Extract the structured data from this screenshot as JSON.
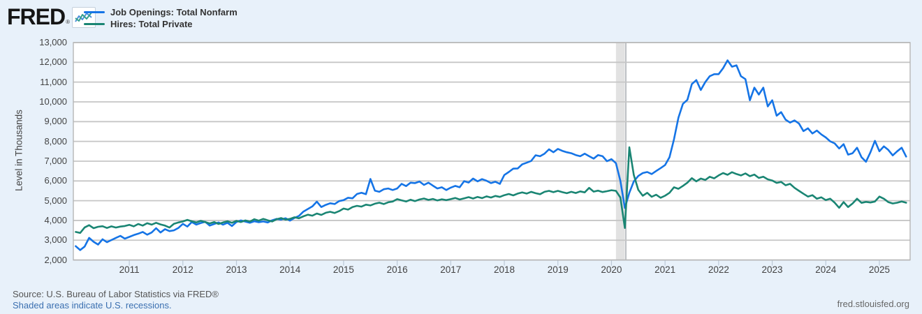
{
  "header": {
    "logo_text": "FRED",
    "logo_reg": "®"
  },
  "colors": {
    "background": "#e8f1fa",
    "plot_bg": "#ffffff",
    "grid": "#c6c6c6",
    "plot_border": "#b6b6b6",
    "recession_band": "#e2e2e2",
    "recession_band_border": "#9aa0a6",
    "x_tick": "#bcc9d6",
    "series_blue": "#1574e6",
    "series_green": "#1a8573"
  },
  "footer": {
    "source": "Source: U.S. Bureau of Labor Statistics via FRED®",
    "recession_note": "Shaded areas indicate U.S. recessions.",
    "site": "fred.stlouisfed.org"
  },
  "chart_data": {
    "type": "line",
    "title": "",
    "ylabel": "Level in Thousands",
    "xlabel": "",
    "ylim": [
      2000,
      13000
    ],
    "grid": "horizontal",
    "legend_position": "top-left",
    "y_tick_labels": [
      "2,000",
      "3,000",
      "4,000",
      "5,000",
      "6,000",
      "7,000",
      "8,000",
      "9,000",
      "10,000",
      "11,000",
      "12,000",
      "13,000"
    ],
    "x_tick_labels": [
      "2011",
      "2012",
      "2013",
      "2014",
      "2015",
      "2016",
      "2017",
      "2018",
      "2019",
      "2020",
      "2021",
      "2022",
      "2023",
      "2024",
      "2025"
    ],
    "x_start": {
      "year": 2010,
      "month": 1
    },
    "frequency": "monthly",
    "recession_bands": [
      {
        "from": "2020-02",
        "to": "2020-04"
      }
    ],
    "series": [
      {
        "id": "job-openings",
        "name": "Job Openings: Total Nonfarm",
        "color": "#1574e6",
        "values": [
          2700,
          2500,
          2680,
          3120,
          2920,
          2780,
          3050,
          2900,
          3010,
          3120,
          3220,
          3080,
          3170,
          3260,
          3330,
          3420,
          3280,
          3390,
          3610,
          3390,
          3560,
          3460,
          3500,
          3620,
          3830,
          3690,
          3920,
          3790,
          3870,
          3930,
          3740,
          3820,
          3900,
          3790,
          3880,
          3720,
          3920,
          4000,
          3940,
          3880,
          3960,
          3910,
          3950,
          3900,
          4010,
          4080,
          4040,
          4110,
          3990,
          4130,
          4230,
          4450,
          4580,
          4710,
          4950,
          4680,
          4790,
          4870,
          4830,
          4980,
          5030,
          5150,
          5120,
          5340,
          5400,
          5330,
          6100,
          5510,
          5450,
          5580,
          5620,
          5540,
          5620,
          5850,
          5740,
          5910,
          5890,
          5970,
          5800,
          5910,
          5760,
          5620,
          5680,
          5540,
          5660,
          5750,
          5680,
          5990,
          5920,
          6120,
          5980,
          6090,
          6010,
          5890,
          5960,
          5850,
          6300,
          6450,
          6620,
          6630,
          6840,
          6920,
          7010,
          7300,
          7250,
          7380,
          7600,
          7450,
          7620,
          7520,
          7450,
          7400,
          7310,
          7250,
          7380,
          7250,
          7130,
          7310,
          7250,
          7000,
          7100,
          6900,
          6000,
          4630,
          5400,
          5980,
          6250,
          6400,
          6450,
          6350,
          6500,
          6650,
          6800,
          7200,
          8100,
          9200,
          9900,
          10100,
          10900,
          11100,
          10600,
          11000,
          11300,
          11400,
          11400,
          11700,
          12100,
          11780,
          11850,
          11300,
          11150,
          10080,
          10720,
          10370,
          10720,
          9770,
          10080,
          9300,
          9480,
          9100,
          8950,
          9060,
          8900,
          8520,
          8660,
          8400,
          8550,
          8350,
          8200,
          8000,
          7900,
          7640,
          7860,
          7330,
          7400,
          7680,
          7200,
          6970,
          7450,
          8030,
          7500,
          7750,
          7570,
          7290,
          7500,
          7680,
          7230
        ]
      },
      {
        "id": "hires",
        "name": "Hires: Total Private",
        "color": "#1a8573",
        "values": [
          3420,
          3370,
          3650,
          3760,
          3610,
          3680,
          3710,
          3620,
          3700,
          3640,
          3690,
          3720,
          3780,
          3700,
          3820,
          3740,
          3860,
          3790,
          3880,
          3800,
          3740,
          3640,
          3830,
          3900,
          3950,
          4030,
          3960,
          3900,
          3980,
          3920,
          3850,
          3920,
          3820,
          3900,
          3960,
          3880,
          3980,
          3920,
          4000,
          3940,
          4060,
          3990,
          4080,
          4010,
          3950,
          4060,
          4120,
          4040,
          4080,
          4160,
          4110,
          4210,
          4290,
          4240,
          4350,
          4280,
          4390,
          4440,
          4380,
          4470,
          4600,
          4550,
          4680,
          4740,
          4700,
          4800,
          4760,
          4850,
          4900,
          4830,
          4920,
          4960,
          5080,
          5020,
          4960,
          5050,
          4980,
          5060,
          5110,
          5040,
          5090,
          5010,
          5070,
          5030,
          5080,
          5140,
          5060,
          5120,
          5180,
          5110,
          5190,
          5130,
          5220,
          5160,
          5240,
          5190,
          5280,
          5340,
          5270,
          5360,
          5420,
          5360,
          5450,
          5380,
          5330,
          5450,
          5500,
          5430,
          5500,
          5430,
          5380,
          5450,
          5390,
          5470,
          5420,
          5650,
          5460,
          5510,
          5440,
          5480,
          5530,
          5500,
          5160,
          3620,
          7700,
          6300,
          5550,
          5250,
          5400,
          5200,
          5300,
          5150,
          5250,
          5400,
          5680,
          5600,
          5750,
          5910,
          6140,
          5980,
          6120,
          6050,
          6210,
          6130,
          6280,
          6400,
          6310,
          6440,
          6350,
          6280,
          6380,
          6240,
          6320,
          6150,
          6210,
          6080,
          6020,
          5900,
          5950,
          5780,
          5850,
          5650,
          5500,
          5350,
          5210,
          5280,
          5100,
          5170,
          5030,
          5100,
          4900,
          4640,
          4930,
          4680,
          4860,
          5100,
          4890,
          4940,
          4910,
          4960,
          5210,
          5100,
          4930,
          4860,
          4900,
          4960,
          4900
        ]
      }
    ]
  }
}
